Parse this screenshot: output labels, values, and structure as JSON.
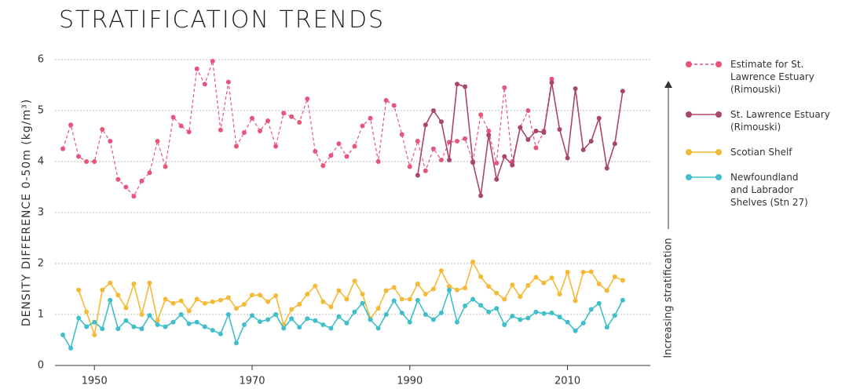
{
  "chart_data": {
    "type": "line",
    "title": "STRATIFICATION TRENDS",
    "y_label": "DENSITY DIFFERENCE 0-50m (kg/m³)",
    "annotation": "Increasing stratification",
    "xlim": [
      1945,
      2020.5
    ],
    "ylim": [
      0,
      6
    ],
    "xticks": [
      1950,
      1970,
      1990,
      2010
    ],
    "yticks": [
      0,
      1,
      2,
      3,
      4,
      5,
      6
    ],
    "grid": true,
    "x": [
      1946,
      1947,
      1948,
      1949,
      1950,
      1951,
      1952,
      1953,
      1954,
      1955,
      1956,
      1957,
      1958,
      1959,
      1960,
      1961,
      1962,
      1963,
      1964,
      1965,
      1966,
      1967,
      1968,
      1969,
      1970,
      1971,
      1972,
      1973,
      1974,
      1975,
      1976,
      1977,
      1978,
      1979,
      1980,
      1981,
      1982,
      1983,
      1984,
      1985,
      1986,
      1987,
      1988,
      1989,
      1990,
      1991,
      1992,
      1993,
      1994,
      1995,
      1996,
      1997,
      1998,
      1999,
      2000,
      2001,
      2002,
      2003,
      2004,
      2005,
      2006,
      2007,
      2008,
      2009,
      2010,
      2011,
      2012,
      2013,
      2014,
      2015,
      2016,
      2017
    ],
    "series": [
      {
        "name": "Estimate for St. Lawrence Estuary (Rimouski)",
        "color": "#e8557a",
        "line_style": "dashed",
        "values": [
          4.25,
          4.72,
          4.1,
          4.0,
          4.0,
          4.63,
          4.4,
          3.65,
          3.5,
          3.32,
          3.62,
          3.78,
          4.4,
          3.9,
          4.87,
          4.7,
          4.58,
          5.82,
          5.52,
          5.97,
          4.62,
          5.56,
          4.3,
          4.57,
          4.85,
          4.6,
          4.8,
          4.3,
          4.95,
          4.88,
          4.77,
          5.23,
          4.2,
          3.92,
          4.12,
          4.35,
          4.1,
          4.3,
          4.7,
          4.85,
          4.0,
          5.2,
          5.1,
          4.53,
          3.9,
          4.4,
          3.82,
          4.25,
          4.03,
          4.38,
          4.4,
          4.45,
          4.0,
          4.92,
          4.6,
          3.97,
          5.45,
          4.0,
          4.67,
          5.0,
          4.27,
          4.6,
          5.62,
          null,
          null,
          null,
          null,
          null,
          null,
          null,
          null,
          null
        ]
      },
      {
        "name": "St. Lawrence Estuary (Rimouski)",
        "color": "#a8466b",
        "line_style": "solid",
        "values": [
          null,
          null,
          null,
          null,
          null,
          null,
          null,
          null,
          null,
          null,
          null,
          null,
          null,
          null,
          null,
          null,
          null,
          null,
          null,
          null,
          null,
          null,
          null,
          null,
          null,
          null,
          null,
          null,
          null,
          null,
          null,
          null,
          null,
          null,
          null,
          null,
          null,
          null,
          null,
          null,
          null,
          null,
          null,
          null,
          null,
          3.73,
          4.72,
          5.0,
          4.78,
          4.03,
          5.52,
          5.47,
          3.98,
          3.33,
          4.52,
          3.65,
          4.1,
          3.93,
          4.67,
          4.43,
          4.6,
          4.57,
          5.55,
          4.63,
          4.07,
          5.43,
          4.23,
          4.4,
          4.85,
          3.87,
          4.35,
          5.38
        ]
      },
      {
        "name": "Scotian Shelf",
        "color": "#f5b935",
        "line_style": "solid",
        "values": [
          null,
          null,
          1.48,
          1.05,
          0.6,
          1.48,
          1.62,
          1.38,
          1.13,
          1.6,
          1.0,
          1.62,
          0.88,
          1.3,
          1.22,
          1.27,
          1.07,
          1.3,
          1.22,
          1.25,
          1.28,
          1.33,
          1.12,
          1.2,
          1.38,
          1.38,
          1.25,
          1.37,
          0.8,
          1.1,
          1.2,
          1.4,
          1.56,
          1.25,
          1.15,
          1.47,
          1.3,
          1.66,
          1.4,
          0.92,
          1.12,
          1.47,
          1.53,
          1.3,
          1.3,
          1.6,
          1.4,
          1.5,
          1.86,
          1.55,
          1.48,
          1.52,
          2.03,
          1.74,
          1.55,
          1.42,
          1.3,
          1.58,
          1.35,
          1.57,
          1.73,
          1.62,
          1.72,
          1.4,
          1.83,
          1.27,
          1.83,
          1.84,
          1.6,
          1.47,
          1.74,
          1.67
        ]
      },
      {
        "name": "Newfoundland and Labrador Shelves (Stn 27)",
        "color": "#3fbfca",
        "line_style": "solid",
        "values": [
          0.6,
          0.34,
          0.93,
          0.76,
          0.85,
          0.72,
          1.28,
          0.72,
          0.88,
          0.76,
          0.72,
          0.98,
          0.8,
          0.76,
          0.85,
          1.0,
          0.82,
          0.85,
          0.76,
          0.69,
          0.62,
          1.0,
          0.44,
          0.8,
          0.98,
          0.86,
          0.9,
          1.0,
          0.73,
          0.92,
          0.75,
          0.92,
          0.88,
          0.8,
          0.73,
          0.96,
          0.83,
          1.05,
          1.22,
          0.9,
          0.73,
          1.0,
          1.27,
          1.03,
          0.85,
          1.28,
          1.0,
          0.9,
          1.03,
          1.48,
          0.85,
          1.17,
          1.3,
          1.18,
          1.05,
          1.12,
          0.8,
          0.97,
          0.9,
          0.93,
          1.05,
          1.02,
          1.03,
          0.95,
          0.85,
          0.68,
          0.83,
          1.1,
          1.22,
          0.75,
          0.98,
          1.28
        ]
      }
    ]
  }
}
